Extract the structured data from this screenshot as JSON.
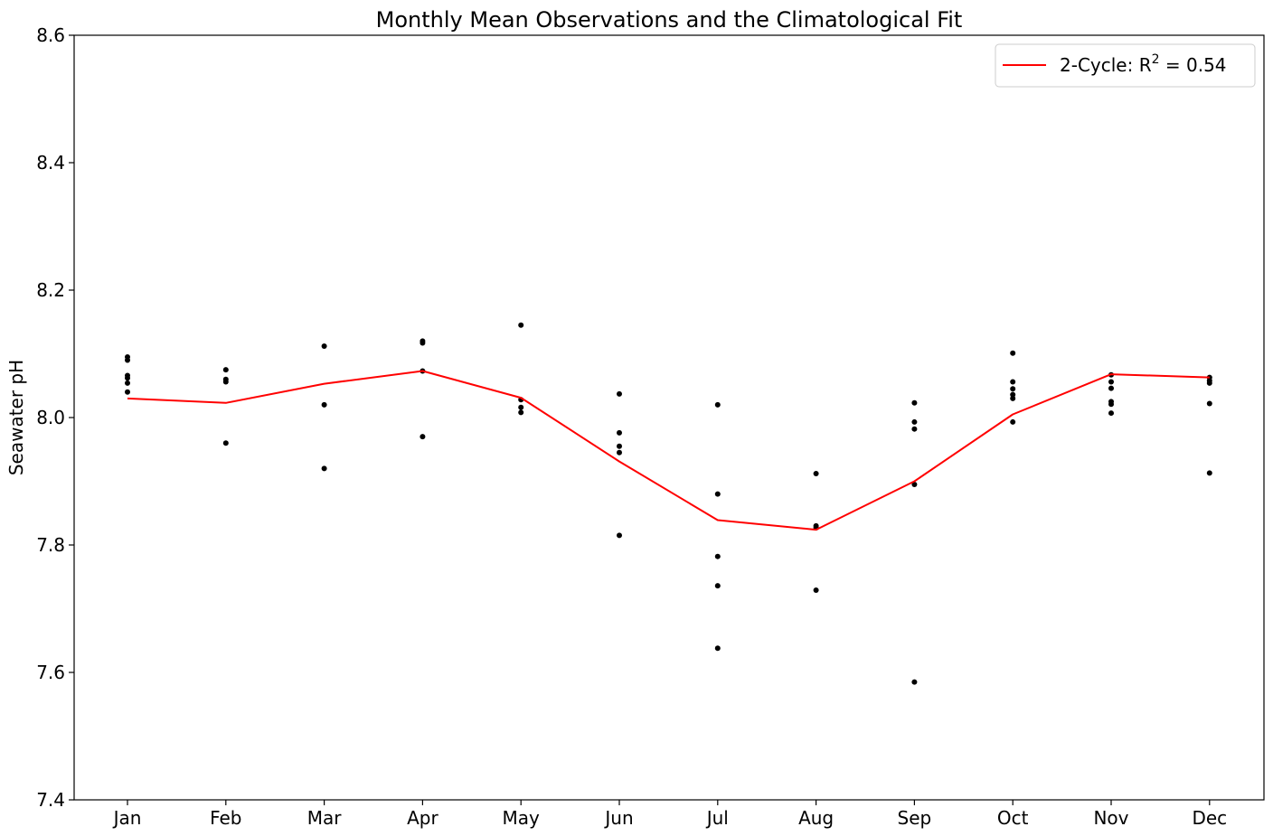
{
  "chart_data": {
    "type": "scatter",
    "title": "Monthly Mean Observations and the Climatological Fit",
    "xlabel": "",
    "ylabel": "Seawater pH",
    "ylim": [
      7.4,
      8.6
    ],
    "yticks": [
      "7.4",
      "7.6",
      "7.8",
      "8.0",
      "8.2",
      "8.4",
      "8.6"
    ],
    "categories": [
      "Jan",
      "Feb",
      "Mar",
      "Apr",
      "May",
      "Jun",
      "Jul",
      "Aug",
      "Sep",
      "Oct",
      "Nov",
      "Dec"
    ],
    "grid": false,
    "legend_position": "top-right",
    "colors": {
      "fit": "#ff0000",
      "points": "#000000"
    },
    "observations": {
      "Jan": [
        8.095,
        8.09,
        8.066,
        8.062,
        8.054,
        8.04
      ],
      "Feb": [
        8.075,
        8.06,
        8.056,
        7.96
      ],
      "Mar": [
        8.112,
        8.02,
        7.92
      ],
      "Apr": [
        8.12,
        8.117,
        8.073,
        7.97
      ],
      "May": [
        8.145,
        8.028,
        8.016,
        8.008
      ],
      "Jun": [
        8.037,
        7.976,
        7.955,
        7.945,
        7.815
      ],
      "Jul": [
        8.02,
        7.88,
        7.782,
        7.736,
        7.638
      ],
      "Aug": [
        7.912,
        7.83,
        7.827,
        7.729
      ],
      "Sep": [
        8.023,
        7.993,
        7.982,
        7.895,
        7.585
      ],
      "Oct": [
        8.101,
        8.056,
        8.045,
        8.036,
        8.03,
        7.993
      ],
      "Nov": [
        8.067,
        8.056,
        8.046,
        8.025,
        8.021,
        8.007
      ],
      "Dec": [
        8.063,
        8.058,
        8.054,
        8.022,
        7.913
      ]
    },
    "series": [
      {
        "name": "2-Cycle: R",
        "name_superscript": "2",
        "name_suffix": " = 0.54",
        "values": [
          8.03,
          8.023,
          8.053,
          8.073,
          8.031,
          7.931,
          7.839,
          7.824,
          7.9,
          8.005,
          8.068,
          8.063
        ]
      }
    ]
  }
}
